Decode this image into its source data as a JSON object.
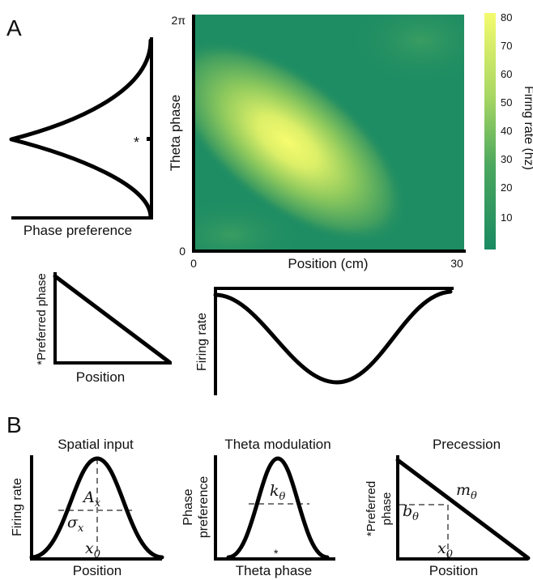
{
  "panel_labels": {
    "a": "A",
    "b": "B"
  },
  "heatmap": {
    "xlabel": "Position (cm)",
    "ylabel": "Theta phase",
    "x_ticks": [
      "0",
      "30"
    ],
    "y_ticks": [
      "0",
      "2π"
    ],
    "colorbar_label": "Firing rate (hz)",
    "colorbar_ticks": [
      "80",
      "70",
      "60",
      "50",
      "40",
      "30",
      "20",
      "10"
    ],
    "colors": {
      "low": "#1a8a62",
      "mid": "#6fba5a",
      "high": "#f4fb6e"
    }
  },
  "phase_preference_plot": {
    "xlabel": "Phase preference",
    "marker": "*"
  },
  "preferred_phase_plot": {
    "xlabel": "Position",
    "ylabel": "*Preferred phase"
  },
  "firing_rate_plot": {
    "ylabel": "Firing rate"
  },
  "panel_b": {
    "spatial_input": {
      "title": "Spatial input",
      "xlabel": "Position",
      "ylabel": "Firing rate",
      "amp_symbol": "A",
      "amp_sub": "x",
      "sigma_symbol": "σ",
      "sigma_sub": "x",
      "center_symbol": "x",
      "center_sub": "0"
    },
    "theta_modulation": {
      "title": "Theta modulation",
      "xlabel": "Theta phase",
      "ylabel_line1": "Phase",
      "ylabel_line2": "preference",
      "k_symbol": "k",
      "k_sub": "θ",
      "marker": "*"
    },
    "precession": {
      "title": "Precession",
      "xlabel": "Position",
      "ylabel_line1": "*Preferred",
      "ylabel_line2": "phase",
      "slope_symbol": "m",
      "slope_sub": "θ",
      "intercept_symbol": "b",
      "intercept_sub": "θ",
      "center_symbol": "x",
      "center_sub": "0"
    }
  }
}
